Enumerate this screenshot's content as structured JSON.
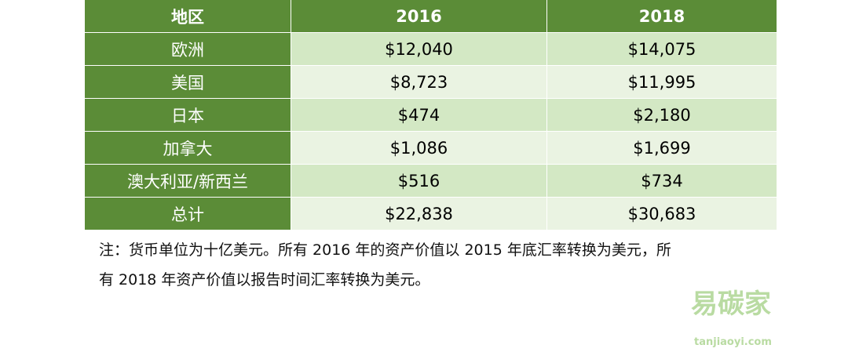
{
  "table": {
    "header": [
      "地区",
      "2016",
      "2018"
    ],
    "rows": [
      [
        "欧洲",
        "$12,040",
        "$14,075"
      ],
      [
        "美国",
        "$8,723",
        "$11,995"
      ],
      [
        "日本",
        "$474",
        "$2,180"
      ],
      [
        "加拿大",
        "$1,086",
        "$1,699"
      ],
      [
        "澳大利亚/新西兰",
        "$516",
        "$734"
      ],
      [
        "总计",
        "$22,838",
        "$30,683"
      ]
    ]
  },
  "note": [
    "注：货币单位为十亿美元。所有 2016 年的资产价值以 2015 年底汇率转换为美元，所",
    "有 2018 年资产价值以报告时间汇率转换为美元。"
  ],
  "watermark": {
    "name": "易碳家",
    "url": "tanjiaoyi.com"
  }
}
